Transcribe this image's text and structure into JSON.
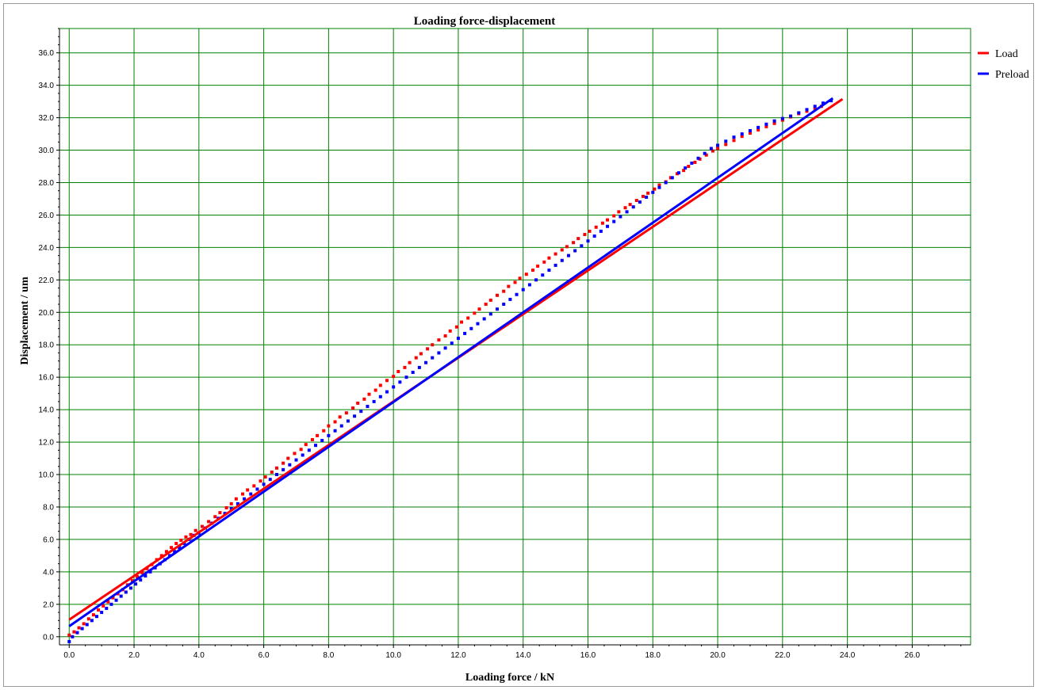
{
  "chart_data": {
    "type": "scatter",
    "title": "Loading force-displacement",
    "xlabel": "Loading force  /  kN",
    "ylabel": "Displacement  /  um",
    "xlim": [
      -0.3,
      27.8
    ],
    "ylim": [
      -0.5,
      37.5
    ],
    "x_ticks": [
      "0.0",
      "2.0",
      "4.0",
      "6.0",
      "8.0",
      "10.0",
      "12.0",
      "14.0",
      "16.0",
      "18.0",
      "20.0",
      "22.0",
      "24.0",
      "26.0"
    ],
    "y_ticks": [
      "0.0",
      "2.0",
      "4.0",
      "6.0",
      "8.0",
      "10.0",
      "12.0",
      "14.0",
      "16.0",
      "18.0",
      "20.0",
      "22.0",
      "24.0",
      "26.0",
      "28.0",
      "30.0",
      "32.0",
      "34.0",
      "36.0"
    ],
    "grid": true,
    "legend_position": "top-right, outside plot",
    "series": [
      {
        "name": "Load",
        "color": "#ff0000",
        "marker": "square",
        "points": [
          [
            0.0,
            0.1
          ],
          [
            0.15,
            0.3
          ],
          [
            0.3,
            0.55
          ],
          [
            0.45,
            0.8
          ],
          [
            0.6,
            1.1
          ],
          [
            0.75,
            1.35
          ],
          [
            0.9,
            1.65
          ],
          [
            1.05,
            1.9
          ],
          [
            1.2,
            2.15
          ],
          [
            1.35,
            2.4
          ],
          [
            1.5,
            2.65
          ],
          [
            1.65,
            2.9
          ],
          [
            1.8,
            3.2
          ],
          [
            1.95,
            3.45
          ],
          [
            2.1,
            3.7
          ],
          [
            2.25,
            3.95
          ],
          [
            2.4,
            4.2
          ],
          [
            2.55,
            4.45
          ],
          [
            2.7,
            4.75
          ],
          [
            2.85,
            5.0
          ],
          [
            3.0,
            5.25
          ],
          [
            3.15,
            5.5
          ],
          [
            3.3,
            5.75
          ],
          [
            3.45,
            5.95
          ],
          [
            3.6,
            6.15
          ],
          [
            3.75,
            6.3
          ],
          [
            3.9,
            6.55
          ],
          [
            4.1,
            6.8
          ],
          [
            4.3,
            7.1
          ],
          [
            4.5,
            7.4
          ],
          [
            4.65,
            7.65
          ],
          [
            4.85,
            7.95
          ],
          [
            5.0,
            8.2
          ],
          [
            5.15,
            8.5
          ],
          [
            5.35,
            8.8
          ],
          [
            5.5,
            9.05
          ],
          [
            5.7,
            9.3
          ],
          [
            5.9,
            9.6
          ],
          [
            6.05,
            9.85
          ],
          [
            6.25,
            10.15
          ],
          [
            6.4,
            10.4
          ],
          [
            6.6,
            10.7
          ],
          [
            6.75,
            11.0
          ],
          [
            6.95,
            11.3
          ],
          [
            7.15,
            11.55
          ],
          [
            7.3,
            11.85
          ],
          [
            7.5,
            12.15
          ],
          [
            7.65,
            12.4
          ],
          [
            7.85,
            12.7
          ],
          [
            8.0,
            13.0
          ],
          [
            8.2,
            13.25
          ],
          [
            8.35,
            13.55
          ],
          [
            8.55,
            13.8
          ],
          [
            8.75,
            14.1
          ],
          [
            8.9,
            14.4
          ],
          [
            9.1,
            14.65
          ],
          [
            9.25,
            14.95
          ],
          [
            9.45,
            15.2
          ],
          [
            9.6,
            15.5
          ],
          [
            9.8,
            15.8
          ],
          [
            10.0,
            16.05
          ],
          [
            10.15,
            16.35
          ],
          [
            10.35,
            16.6
          ],
          [
            10.5,
            16.9
          ],
          [
            10.7,
            17.2
          ],
          [
            10.85,
            17.45
          ],
          [
            11.05,
            17.75
          ],
          [
            11.2,
            18.0
          ],
          [
            11.4,
            18.3
          ],
          [
            11.6,
            18.55
          ],
          [
            11.75,
            18.85
          ],
          [
            11.95,
            19.1
          ],
          [
            12.1,
            19.4
          ],
          [
            12.3,
            19.65
          ],
          [
            12.5,
            19.95
          ],
          [
            12.65,
            20.2
          ],
          [
            12.85,
            20.5
          ],
          [
            13.0,
            20.75
          ],
          [
            13.2,
            21.05
          ],
          [
            13.4,
            21.3
          ],
          [
            13.55,
            21.6
          ],
          [
            13.75,
            21.85
          ],
          [
            13.9,
            22.1
          ],
          [
            14.1,
            22.35
          ],
          [
            14.3,
            22.6
          ],
          [
            14.45,
            22.85
          ],
          [
            14.65,
            23.1
          ],
          [
            14.8,
            23.35
          ],
          [
            15.0,
            23.6
          ],
          [
            15.2,
            23.85
          ],
          [
            15.35,
            24.05
          ],
          [
            15.55,
            24.3
          ],
          [
            15.7,
            24.55
          ],
          [
            15.9,
            24.8
          ],
          [
            16.05,
            25.0
          ],
          [
            16.25,
            25.25
          ],
          [
            16.45,
            25.5
          ],
          [
            16.6,
            25.7
          ],
          [
            16.8,
            25.95
          ],
          [
            16.95,
            26.2
          ],
          [
            17.15,
            26.45
          ],
          [
            17.3,
            26.65
          ],
          [
            17.5,
            26.9
          ],
          [
            17.7,
            27.15
          ],
          [
            17.85,
            27.35
          ],
          [
            18.05,
            27.6
          ],
          [
            18.2,
            27.85
          ],
          [
            18.4,
            28.05
          ],
          [
            18.55,
            28.3
          ],
          [
            18.75,
            28.55
          ],
          [
            18.95,
            28.75
          ],
          [
            19.1,
            29.0
          ],
          [
            19.3,
            29.25
          ],
          [
            19.45,
            29.45
          ],
          [
            19.65,
            29.7
          ],
          [
            19.85,
            29.95
          ],
          [
            20.0,
            30.1
          ],
          [
            20.25,
            30.35
          ],
          [
            20.5,
            30.6
          ],
          [
            20.75,
            30.85
          ],
          [
            21.0,
            31.05
          ],
          [
            21.25,
            31.25
          ],
          [
            21.5,
            31.45
          ],
          [
            21.75,
            31.65
          ],
          [
            22.0,
            31.85
          ],
          [
            22.25,
            32.05
          ],
          [
            22.5,
            32.25
          ],
          [
            22.75,
            32.4
          ],
          [
            23.0,
            32.55
          ],
          [
            23.2,
            32.7
          ]
        ],
        "trendline": [
          [
            0.0,
            1.05
          ],
          [
            23.85,
            33.15
          ]
        ]
      },
      {
        "name": "Preload",
        "color": "#0000ff",
        "marker": "square",
        "points": [
          [
            0.0,
            -0.3
          ],
          [
            0.1,
            0.0
          ],
          [
            0.25,
            0.25
          ],
          [
            0.4,
            0.5
          ],
          [
            0.55,
            0.75
          ],
          [
            0.7,
            1.0
          ],
          [
            0.85,
            1.25
          ],
          [
            1.0,
            1.5
          ],
          [
            1.15,
            1.75
          ],
          [
            1.3,
            2.0
          ],
          [
            1.45,
            2.25
          ],
          [
            1.6,
            2.5
          ],
          [
            1.75,
            2.75
          ],
          [
            1.9,
            3.0
          ],
          [
            2.05,
            3.25
          ],
          [
            2.2,
            3.5
          ],
          [
            2.35,
            3.75
          ],
          [
            2.5,
            4.0
          ],
          [
            2.65,
            4.25
          ],
          [
            2.8,
            4.5
          ],
          [
            2.95,
            4.75
          ],
          [
            3.1,
            5.0
          ],
          [
            3.25,
            5.25
          ],
          [
            3.4,
            5.5
          ],
          [
            3.55,
            5.75
          ],
          [
            3.7,
            6.0
          ],
          [
            3.85,
            6.25
          ],
          [
            4.0,
            6.4
          ],
          [
            4.2,
            6.7
          ],
          [
            4.4,
            7.0
          ],
          [
            4.6,
            7.3
          ],
          [
            4.8,
            7.6
          ],
          [
            5.0,
            7.9
          ],
          [
            5.2,
            8.2
          ],
          [
            5.4,
            8.5
          ],
          [
            5.6,
            8.8
          ],
          [
            5.8,
            9.1
          ],
          [
            6.0,
            9.4
          ],
          [
            6.2,
            9.7
          ],
          [
            6.4,
            10.0
          ],
          [
            6.6,
            10.3
          ],
          [
            6.8,
            10.6
          ],
          [
            7.0,
            10.9
          ],
          [
            7.2,
            11.2
          ],
          [
            7.4,
            11.5
          ],
          [
            7.6,
            11.8
          ],
          [
            7.8,
            12.1
          ],
          [
            8.0,
            12.4
          ],
          [
            8.2,
            12.7
          ],
          [
            8.4,
            13.0
          ],
          [
            8.6,
            13.3
          ],
          [
            8.8,
            13.6
          ],
          [
            9.0,
            13.9
          ],
          [
            9.2,
            14.2
          ],
          [
            9.4,
            14.5
          ],
          [
            9.6,
            14.8
          ],
          [
            9.8,
            15.1
          ],
          [
            10.0,
            15.4
          ],
          [
            10.2,
            15.7
          ],
          [
            10.4,
            16.0
          ],
          [
            10.6,
            16.3
          ],
          [
            10.8,
            16.6
          ],
          [
            11.0,
            16.9
          ],
          [
            11.2,
            17.2
          ],
          [
            11.4,
            17.5
          ],
          [
            11.6,
            17.8
          ],
          [
            11.8,
            18.1
          ],
          [
            12.0,
            18.4
          ],
          [
            12.2,
            18.7
          ],
          [
            12.4,
            19.0
          ],
          [
            12.6,
            19.3
          ],
          [
            12.8,
            19.6
          ],
          [
            13.0,
            19.9
          ],
          [
            13.2,
            20.2
          ],
          [
            13.4,
            20.5
          ],
          [
            13.6,
            20.8
          ],
          [
            13.8,
            21.1
          ],
          [
            14.0,
            21.4
          ],
          [
            14.2,
            21.7
          ],
          [
            14.4,
            22.0
          ],
          [
            14.6,
            22.3
          ],
          [
            14.8,
            22.6
          ],
          [
            15.0,
            22.9
          ],
          [
            15.2,
            23.2
          ],
          [
            15.4,
            23.5
          ],
          [
            15.6,
            23.8
          ],
          [
            15.8,
            24.1
          ],
          [
            16.0,
            24.4
          ],
          [
            16.2,
            24.7
          ],
          [
            16.4,
            25.0
          ],
          [
            16.6,
            25.3
          ],
          [
            16.8,
            25.6
          ],
          [
            17.0,
            25.9
          ],
          [
            17.2,
            26.2
          ],
          [
            17.4,
            26.5
          ],
          [
            17.6,
            26.8
          ],
          [
            17.8,
            27.1
          ],
          [
            18.0,
            27.4
          ],
          [
            18.2,
            27.7
          ],
          [
            18.4,
            28.0
          ],
          [
            18.6,
            28.3
          ],
          [
            18.8,
            28.6
          ],
          [
            19.0,
            28.9
          ],
          [
            19.2,
            29.2
          ],
          [
            19.4,
            29.5
          ],
          [
            19.6,
            29.8
          ],
          [
            19.8,
            30.1
          ],
          [
            20.0,
            30.3
          ],
          [
            20.25,
            30.55
          ],
          [
            20.5,
            30.8
          ],
          [
            20.75,
            31.0
          ],
          [
            21.0,
            31.2
          ],
          [
            21.25,
            31.4
          ],
          [
            21.5,
            31.6
          ],
          [
            21.75,
            31.8
          ],
          [
            22.0,
            31.95
          ],
          [
            22.25,
            32.1
          ],
          [
            22.5,
            32.3
          ],
          [
            22.75,
            32.5
          ],
          [
            23.0,
            32.7
          ],
          [
            23.25,
            32.9
          ],
          [
            23.5,
            33.05
          ]
        ],
        "trendline": [
          [
            0.0,
            0.65
          ],
          [
            23.55,
            33.2
          ]
        ]
      }
    ]
  }
}
